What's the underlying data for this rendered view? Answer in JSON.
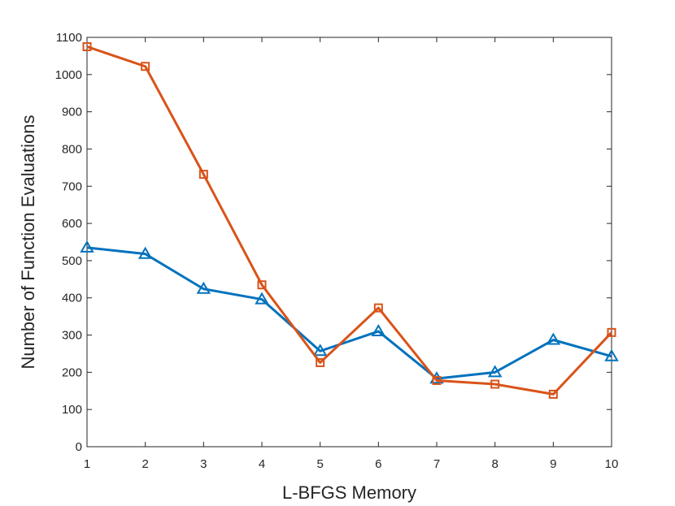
{
  "chart_data": {
    "type": "line",
    "xlabel": "L-BFGS Memory",
    "ylabel": "Number of Function Evaluations",
    "xlim": [
      1,
      10
    ],
    "ylim": [
      0,
      1100
    ],
    "x": [
      1,
      2,
      3,
      4,
      5,
      6,
      7,
      8,
      9,
      10
    ],
    "xticks": [
      "1",
      "2",
      "3",
      "4",
      "5",
      "6",
      "7",
      "8",
      "9",
      "10"
    ],
    "yticks": [
      "0",
      "100",
      "200",
      "300",
      "400",
      "500",
      "600",
      "700",
      "800",
      "900",
      "1000",
      "1100"
    ],
    "grid": false,
    "series": [
      {
        "marker": "triangle",
        "color": "#0072BD",
        "values": [
          535,
          518,
          424,
          396,
          257,
          310,
          183,
          200,
          287,
          243
        ]
      },
      {
        "marker": "square",
        "color": "#D95319",
        "values": [
          1075,
          1022,
          732,
          435,
          226,
          373,
          178,
          168,
          141,
          307
        ]
      }
    ]
  }
}
